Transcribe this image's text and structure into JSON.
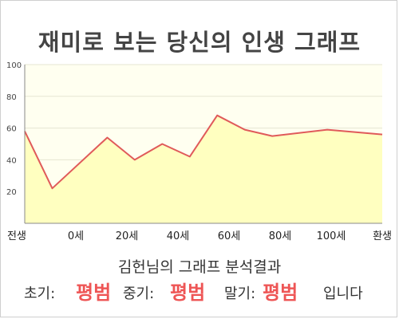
{
  "title": "재미로 보는 당신의 인생 그래프",
  "colors": {
    "line": "#e05a5a",
    "fill": "#ffffc0",
    "plot_bg": "#fffff0",
    "grid": "#e6e6d2",
    "axis": "#888888",
    "highlight": "#ee5555"
  },
  "chart_data": {
    "type": "area",
    "title": "재미로 보는 당신의 인생 그래프",
    "x_tick_labels": [
      "전생",
      "0세",
      "20세",
      "40세",
      "60세",
      "80세",
      "100세",
      "환생"
    ],
    "ylim": [
      0,
      100
    ],
    "y_ticks": [
      20,
      40,
      60,
      80,
      100
    ],
    "grid": true,
    "series": [
      {
        "points": [
          {
            "x": -10,
            "y": 58
          },
          {
            "x": 0,
            "y": 22
          },
          {
            "x": 20,
            "y": 54
          },
          {
            "x": 30,
            "y": 40
          },
          {
            "x": 40,
            "y": 50
          },
          {
            "x": 50,
            "y": 42
          },
          {
            "x": 60,
            "y": 68
          },
          {
            "x": 70,
            "y": 59
          },
          {
            "x": 80,
            "y": 55
          },
          {
            "x": 100,
            "y": 59
          },
          {
            "x": 120,
            "y": 56
          }
        ]
      }
    ]
  },
  "analysis": {
    "heading": "김헌님의 그래프 분석결과",
    "early_label": "초기:",
    "early_value": "평범",
    "mid_label": "중기:",
    "mid_value": "평범",
    "late_label": "말기:",
    "late_value": "평범",
    "ending": "입니다"
  }
}
